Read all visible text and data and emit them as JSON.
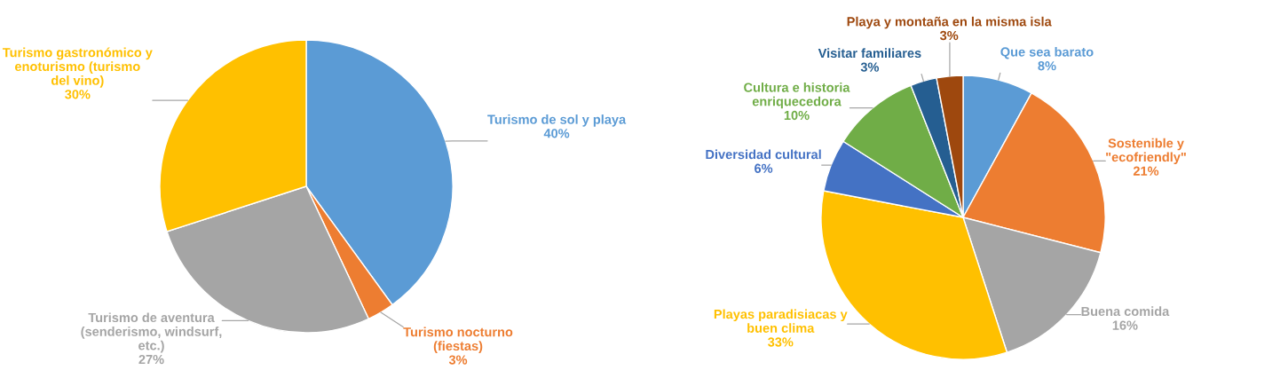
{
  "chart_data": [
    {
      "type": "pie",
      "categories": [
        "Turismo de sol y playa",
        "Turismo nocturno (fiestas)",
        "Turismo de aventura (senderismo, windsurf, etc.)",
        "Turismo gastronómico y enoturismo (turismo del vino)"
      ],
      "values": [
        40,
        3,
        27,
        30
      ],
      "colors": [
        "#5b9bd5",
        "#ed7d31",
        "#a5a5a5",
        "#ffc000"
      ],
      "value_labels": [
        "40%",
        "3%",
        "27%",
        "30%"
      ]
    },
    {
      "type": "pie",
      "categories": [
        "Que sea barato",
        "Sostenible y \"ecofriendly\"",
        "Buena comida",
        "Playas paradisiacas y buen clima",
        "Diversidad cultural",
        "Cultura e historia enriquecedora",
        "Visitar familiares",
        "Playa y montaña en la misma isla"
      ],
      "values": [
        8,
        21,
        16,
        33,
        6,
        10,
        3,
        3
      ],
      "colors": [
        "#5b9bd5",
        "#ed7d31",
        "#a5a5a5",
        "#ffc000",
        "#4472c4",
        "#70ad47",
        "#255e91",
        "#9e480e"
      ],
      "value_labels": [
        "8%",
        "21%",
        "16%",
        "33%",
        "6%",
        "10%",
        "3%",
        "3%"
      ]
    }
  ]
}
